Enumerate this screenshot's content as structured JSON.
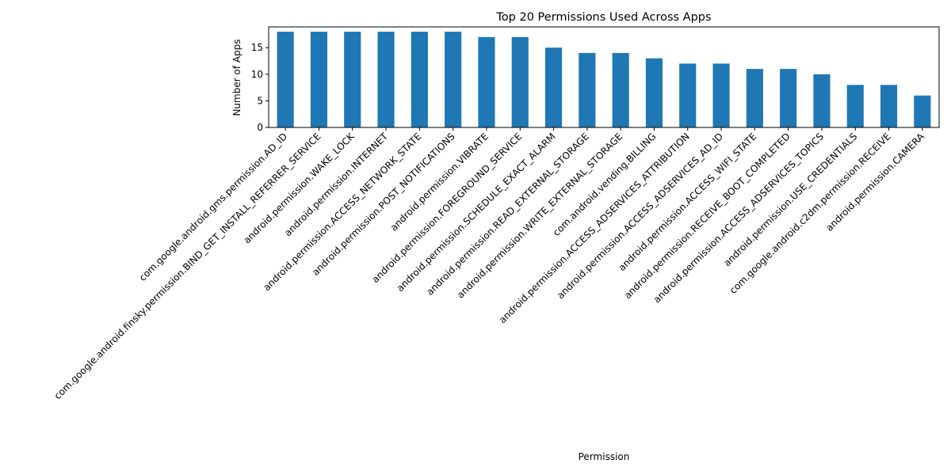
{
  "chart_data": {
    "type": "bar",
    "title": "Top 20 Permissions Used Across Apps",
    "xlabel": "Permission",
    "ylabel": "Number of Apps",
    "ylim": [
      0,
      18.9
    ],
    "yticks": [
      0,
      5,
      10,
      15
    ],
    "grid": false,
    "legend": "none",
    "bar_color": "#1f77b4",
    "categories": [
      "com.google.android.gms.permission.AD_ID",
      "com.google.android.finsky.permission.BIND_GET_INSTALL_REFERRER_SERVICE",
      "android.permission.WAKE_LOCK",
      "android.permission.INTERNET",
      "android.permission.ACCESS_NETWORK_STATE",
      "android.permission.POST_NOTIFICATIONS",
      "android.permission.VIBRATE",
      "android.permission.FOREGROUND_SERVICE",
      "android.permission.SCHEDULE_EXACT_ALARM",
      "android.permission.READ_EXTERNAL_STORAGE",
      "android.permission.WRITE_EXTERNAL_STORAGE",
      "com.android.vending.BILLING",
      "android.permission.ACCESS_ADSERVICES_ATTRIBUTION",
      "android.permission.ACCESS_ADSERVICES_AD_ID",
      "android.permission.ACCESS_WIFI_STATE",
      "android.permission.RECEIVE_BOOT_COMPLETED",
      "android.permission.ACCESS_ADSERVICES_TOPICS",
      "android.permission.USE_CREDENTIALS",
      "com.google.android.c2dm.permission.RECEIVE",
      "android.permission.CAMERA"
    ],
    "values": [
      18,
      18,
      18,
      18,
      18,
      18,
      17,
      17,
      15,
      14,
      14,
      13,
      12,
      12,
      11,
      11,
      10,
      8,
      8,
      6
    ]
  }
}
